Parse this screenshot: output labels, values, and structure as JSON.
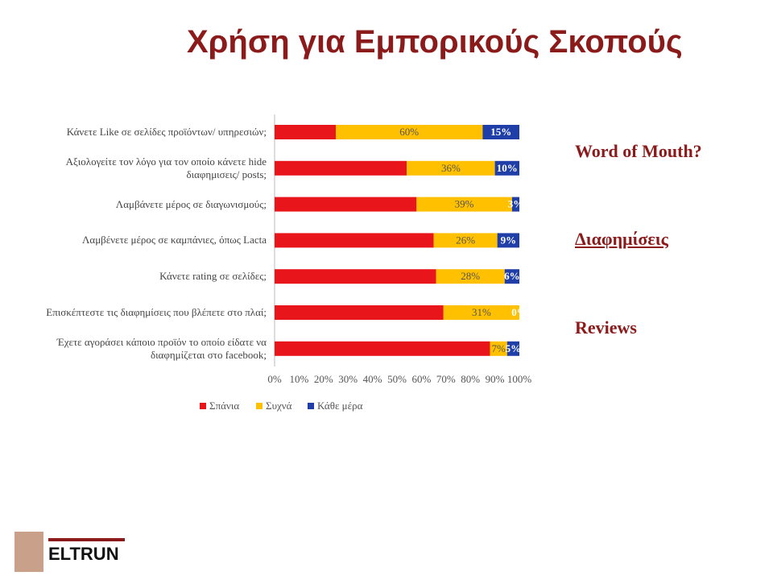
{
  "slide": {
    "title": "Χρήση για Εμπορικούς Σκοπούς",
    "notes": [
      "Word of Mouth?",
      "Διαφημίσεις",
      "Reviews"
    ],
    "logo": "ELTRUN"
  },
  "chart_data": {
    "type": "stacked-bar-horizontal",
    "categories": [
      "Κάνετε Like σε σελίδες προϊόντων/ υπηρεσιών;",
      "Αξιολογείτε τον λόγο για τον οποίο κάνετε hide διαφημισεις/ posts;",
      "Λαμβάνετε μέρος σε διαγωνισμούς;",
      "Λαμβένετε μέρος σε καμπάνιες, όπως Lacta",
      "Κάνετε rating σε σελίδες;",
      "Επισκέπτεστε τις διαφημίσεις που βλέπετε στο πλαί;",
      "Έχετε αγοράσει κάποιο προϊόν το οποίο είδατε να διαφημίζεται στο facebook;"
    ],
    "series": [
      {
        "name": "Σπάνια",
        "color": "#e8161b",
        "values": [
          25,
          54,
          58,
          65,
          66,
          69,
          88
        ]
      },
      {
        "name": "Συχνά",
        "color": "#ffc000",
        "values": [
          60,
          36,
          39,
          26,
          28,
          31,
          7
        ],
        "value_labels": [
          "60%",
          "36%",
          "39%",
          "26%",
          "28%",
          "31%",
          "7%"
        ]
      },
      {
        "name": "Κάθε μέρα",
        "color": "#1f3ea8",
        "values": [
          15,
          10,
          3,
          9,
          6,
          0,
          5
        ],
        "value_labels": [
          "15%",
          "10%",
          "3%",
          "9%",
          "6%",
          "0%",
          "5%"
        ]
      }
    ],
    "xlim": [
      0,
      100
    ],
    "xticks": [
      {
        "value": 0,
        "label": "0%"
      },
      {
        "value": 10,
        "label": "10%"
      },
      {
        "value": 20,
        "label": "20%"
      },
      {
        "value": 30,
        "label": "30%"
      },
      {
        "value": 40,
        "label": "40%"
      },
      {
        "value": 50,
        "label": "50%"
      },
      {
        "value": 60,
        "label": "60%"
      },
      {
        "value": 70,
        "label": "70%"
      },
      {
        "value": 80,
        "label": "80%"
      },
      {
        "value": 90,
        "label": "90%"
      },
      {
        "value": 100,
        "label": "100%"
      }
    ],
    "legend": "bottom"
  }
}
